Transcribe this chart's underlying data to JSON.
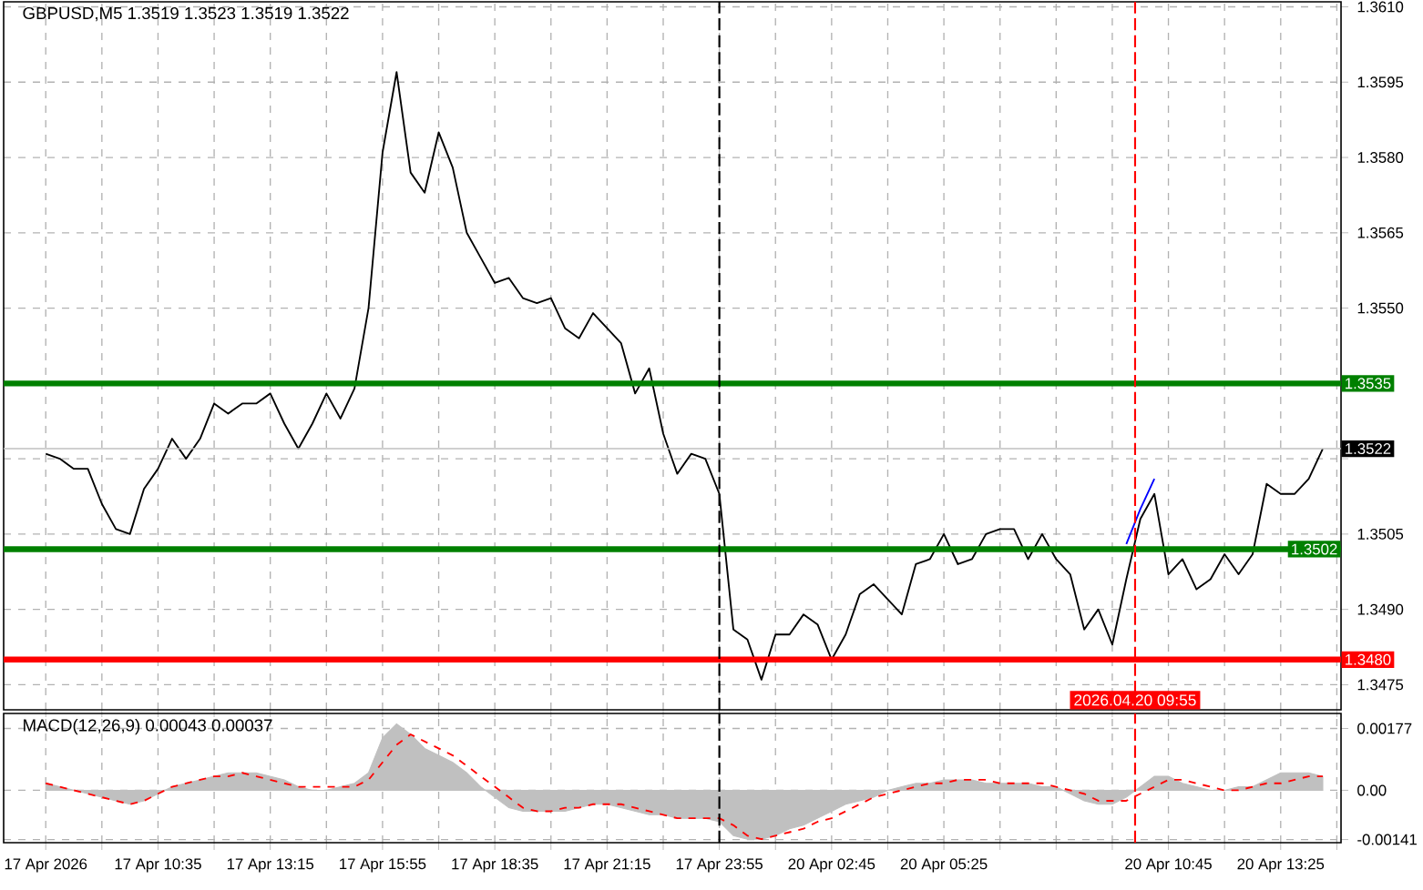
{
  "chart_data": [
    {
      "type": "line",
      "title": "GBPUSD,M5 1.3519 1.3523 1.3519 1.3522",
      "ylim": [
        1.347,
        1.3611
      ],
      "tick_labels": "y",
      "grid": true,
      "categories": [
        "17 Apr 2026",
        null,
        null,
        null,
        null,
        null,
        null,
        null,
        "17 Apr 10:35",
        null,
        null,
        null,
        null,
        null,
        null,
        null,
        "17 Apr 13:15",
        null,
        null,
        null,
        null,
        null,
        null,
        null,
        "17 Apr 15:55",
        null,
        null,
        null,
        null,
        null,
        null,
        null,
        "17 Apr 18:35",
        null,
        null,
        null,
        null,
        null,
        null,
        null,
        "17 Apr 21:15",
        null,
        null,
        null,
        null,
        null,
        null,
        null,
        "17 Apr 23:55",
        null,
        null,
        null,
        null,
        null,
        null,
        null,
        "20 Apr 02:45",
        null,
        null,
        null,
        null,
        null,
        null,
        null,
        "20 Apr 05:25",
        null,
        null,
        null,
        null,
        null,
        null,
        null,
        null,
        null,
        null,
        null,
        null,
        null,
        null,
        null,
        "20 Apr 10:45",
        null,
        null,
        null,
        null,
        null,
        null,
        null,
        "20 Apr 13:25",
        null,
        null,
        null,
        null
      ],
      "yticks": [
        1.3475,
        {
          "value": 1.349,
          "label": "1.3490"
        },
        1.3505,
        {
          "value": 1.352,
          "label": null
        },
        {
          "value": 1.3535,
          "label": null
        },
        {
          "value": 1.355,
          "label": "1.3550"
        },
        1.3565,
        {
          "value": 1.358,
          "label": "1.3580"
        },
        1.3595,
        {
          "value": 1.361,
          "label": "1.3610"
        }
      ],
      "series": [
        {
          "color": "#000000",
          "values": [
            1.3521,
            1.352,
            1.3518,
            1.3518,
            1.3511,
            1.3506,
            1.3505,
            1.3514,
            1.3518,
            1.3524,
            1.352,
            1.3524,
            1.3531,
            1.3529,
            1.3531,
            1.3531,
            1.3533,
            1.3527,
            1.3522,
            1.3527,
            1.3533,
            1.3528,
            1.3534,
            1.355,
            1.3581,
            1.3597,
            1.3577,
            1.3573,
            1.3585,
            1.3578,
            1.3565,
            1.356,
            1.3555,
            1.3556,
            1.3552,
            1.3551,
            1.3552,
            1.3546,
            1.3544,
            1.3549,
            1.3546,
            1.3543,
            1.3533,
            1.3538,
            1.3525,
            1.3517,
            1.3521,
            1.352,
            1.3513,
            1.3486,
            1.3484,
            1.3476,
            1.3485,
            1.3485,
            1.3489,
            1.3487,
            1.348,
            1.3485,
            1.3493,
            1.3495,
            1.3492,
            1.3489,
            1.3499,
            1.35,
            1.3505,
            1.3499,
            1.35,
            1.3505,
            1.3506,
            1.3506,
            1.35,
            1.3505,
            1.35,
            1.3497,
            1.3486,
            1.349,
            1.3483,
            1.3496,
            1.3508,
            1.3513,
            1.3497,
            1.35,
            1.3494,
            1.3496,
            1.3501,
            1.3497,
            1.3501,
            1.3515,
            1.3513,
            1.3513,
            1.3516,
            1.3522,
            null
          ]
        },
        {
          "color": "#0000ff",
          "values": [
            null,
            null,
            null,
            null,
            null,
            null,
            null,
            null,
            null,
            null,
            null,
            null,
            null,
            null,
            null,
            null,
            null,
            null,
            null,
            null,
            null,
            null,
            null,
            null,
            null,
            null,
            null,
            null,
            null,
            null,
            null,
            null,
            null,
            null,
            null,
            null,
            null,
            null,
            null,
            null,
            null,
            null,
            null,
            null,
            null,
            null,
            null,
            null,
            null,
            null,
            null,
            null,
            null,
            null,
            null,
            null,
            null,
            null,
            null,
            null,
            null,
            null,
            null,
            null,
            null,
            null,
            null,
            null,
            null,
            null,
            null,
            null,
            null,
            null,
            null,
            null,
            null,
            1.3503,
            1.351,
            1.3516,
            null,
            null,
            null,
            null,
            null,
            null,
            null,
            null,
            null,
            null,
            null,
            null,
            null
          ]
        }
      ],
      "ref_lines": [
        {
          "axis": "y",
          "value": 1.3535,
          "label": "1.3535",
          "color": "#008000"
        },
        {
          "axis": "y",
          "value": 1.3502,
          "label": "1.3502",
          "color": "#008000"
        },
        {
          "axis": "y",
          "value": 1.348,
          "label": "1.3480",
          "color": "#ff0000"
        },
        {
          "axis": "y",
          "value": 1.3522,
          "label": "1.3522",
          "color": "#c0c0c0"
        },
        {
          "axis": "x",
          "value": "17 Apr 23:55",
          "color": "#000000",
          "line_style": "dashed"
        }
      ],
      "annotations": [
        "2026.04.20 09:55"
      ]
    },
    {
      "type": "area",
      "title": "MACD(12,26,9) 0.00043 0.00037",
      "ylim": [
        -0.0015,
        0.0022
      ],
      "grid": true,
      "categories": [
        "17 Apr 2026",
        null,
        null,
        null,
        null,
        null,
        null,
        null,
        "17 Apr 10:35",
        null,
        null,
        null,
        null,
        null,
        null,
        null,
        "17 Apr 13:15",
        null,
        null,
        null,
        null,
        null,
        null,
        null,
        "17 Apr 15:55",
        null,
        null,
        null,
        null,
        null,
        null,
        null,
        "17 Apr 18:35",
        null,
        null,
        null,
        null,
        null,
        null,
        null,
        "17 Apr 21:15",
        null,
        null,
        null,
        null,
        null,
        null,
        null,
        "17 Apr 23:55",
        null,
        null,
        null,
        null,
        null,
        null,
        null,
        "20 Apr 02:45",
        null,
        null,
        null,
        null,
        null,
        null,
        null,
        "20 Apr 05:25",
        null,
        null,
        null,
        null,
        null,
        null,
        null,
        null,
        null,
        null,
        null,
        null,
        null,
        null,
        null,
        "20 Apr 10:45",
        null,
        null,
        null,
        null,
        null,
        null,
        null,
        "20 Apr 13:25",
        null,
        null,
        null,
        null
      ],
      "yticks": [
        {
          "value": -0.00141,
          "label": "-0.00141"
        },
        {
          "value": 0,
          "label": "0.00"
        },
        {
          "value": 0.00177,
          "label": "0.00177"
        }
      ],
      "series": [
        {
          "color": "#c0c0c0",
          "values": [
            0.0002,
            0.0001,
            0.0,
            -0.0001,
            -0.0002,
            -0.0003,
            -0.0004,
            -0.0003,
            -0.0001,
            0.0001,
            0.0002,
            0.0003,
            0.0004,
            0.0005,
            0.0005,
            0.0005,
            0.0004,
            0.0003,
            0.0001,
            0.0,
            0.0,
            0.0001,
            0.0002,
            0.0005,
            0.0015,
            0.0019,
            0.0016,
            0.0012,
            0.001,
            0.0008,
            0.0005,
            0.0001,
            -0.0002,
            -0.0005,
            -0.0006,
            -0.0006,
            -0.0006,
            -0.0006,
            -0.0005,
            -0.0004,
            -0.0004,
            -0.0005,
            -0.0006,
            -0.0007,
            -0.0007,
            -0.0008,
            -0.0008,
            -0.0008,
            -0.0009,
            -0.0013,
            -0.0014,
            -0.0014,
            -0.0013,
            -0.0011,
            -0.001,
            -0.0008,
            -0.0006,
            -0.0004,
            -0.0003,
            -0.0002,
            0.0,
            0.0001,
            0.0002,
            0.0002,
            0.0003,
            0.0003,
            0.0003,
            0.0002,
            0.0002,
            0.0002,
            0.0002,
            0.0001,
            0.0001,
            -0.0001,
            -0.0003,
            -0.0004,
            -0.0004,
            -0.0002,
            0.0001,
            0.0004,
            0.0004,
            0.0002,
            0.0001,
            0.0,
            0.0,
            0.0001,
            0.0001,
            0.0003,
            0.0005,
            0.0005,
            0.0005,
            0.0004,
            null
          ]
        },
        {
          "type": "line",
          "color": "#ff0000",
          "line_style": "dashed",
          "values": [
            0.0002,
            0.0001,
            0.0,
            -0.0001,
            -0.0002,
            -0.0003,
            -0.0004,
            -0.0003,
            -0.0001,
            0.0001,
            0.0002,
            0.0003,
            0.0004,
            0.0004,
            0.0005,
            0.0004,
            0.0003,
            0.0002,
            0.0001,
            0.0001,
            0.0001,
            0.0001,
            0.0001,
            0.0003,
            0.0008,
            0.0013,
            0.0016,
            0.0014,
            0.0012,
            0.001,
            0.0007,
            0.0004,
            0.0001,
            -0.0002,
            -0.0005,
            -0.0006,
            -0.0006,
            -0.0005,
            -0.0005,
            -0.0004,
            -0.0004,
            -0.0004,
            -0.0005,
            -0.0006,
            -0.0007,
            -0.0008,
            -0.0008,
            -0.0008,
            -0.0008,
            -0.001,
            -0.0013,
            -0.0014,
            -0.0013,
            -0.0012,
            -0.0011,
            -0.0009,
            -0.0008,
            -0.0006,
            -0.0004,
            -0.0002,
            -0.0001,
            0.0,
            0.0001,
            0.0002,
            0.0002,
            0.0003,
            0.0003,
            0.0003,
            0.0002,
            0.0002,
            0.0002,
            0.0002,
            0.0001,
            0.0,
            -0.0001,
            -0.0003,
            -0.0003,
            -0.0003,
            -0.0001,
            0.0001,
            0.0003,
            0.0003,
            0.0002,
            0.0001,
            0.0,
            0.0,
            0.0001,
            0.0002,
            0.0002,
            0.0003,
            0.0004,
            0.0004,
            null
          ]
        }
      ],
      "ref_lines": [
        {
          "axis": "x",
          "value": "17 Apr 23:55",
          "color": "#000000",
          "line_style": "dashed"
        }
      ]
    }
  ]
}
